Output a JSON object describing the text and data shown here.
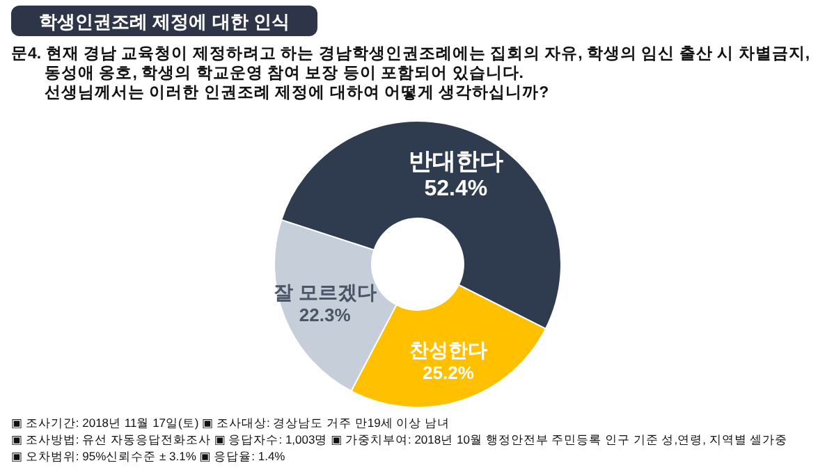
{
  "chart_data": {
    "type": "donut",
    "title": "학생인권조례 제정에 대한 인식",
    "subtitle": "문4. 현재 경남 교육청이 제정하려고 하는 경남학생인권조례에는 집회의 자유, 학생의 임신 출산 시 차별금지,\n동성애 옹호, 학생의 학교운영 참여 보장 등이 포함되어 있습니다.\n선생님께서는 이러한 인권조례 제정에 대하여 어떻게 생각하십니까?",
    "categories": [
      "반대한다",
      "찬성한다",
      "잘 모르겠다"
    ],
    "values": [
      52.4,
      25.2,
      22.3
    ],
    "colors": [
      "#2f3b4f",
      "#ffc000",
      "#c5ced9"
    ],
    "value_labels": [
      "52.4%",
      "25.2%",
      "22.3%"
    ],
    "annotations": [
      "▣ 조사기간: 2018년 11월 17일(토) ▣ 조사대상: 경상남도 거주 만19세 이상 남녀",
      "▣ 조사방법: 유선 자동응답전화조사 ▣ 응답자수: 1,003명 ▣ 가중치부여: 2018년 10월 행정안전부 주민등록 인구 기준 성,연령, 지역별 셀가중",
      "▣ 오차범위: 95%신뢰수준 ± 3.1% ▣ 응답율: 1.4%"
    ],
    "legend": false
  }
}
